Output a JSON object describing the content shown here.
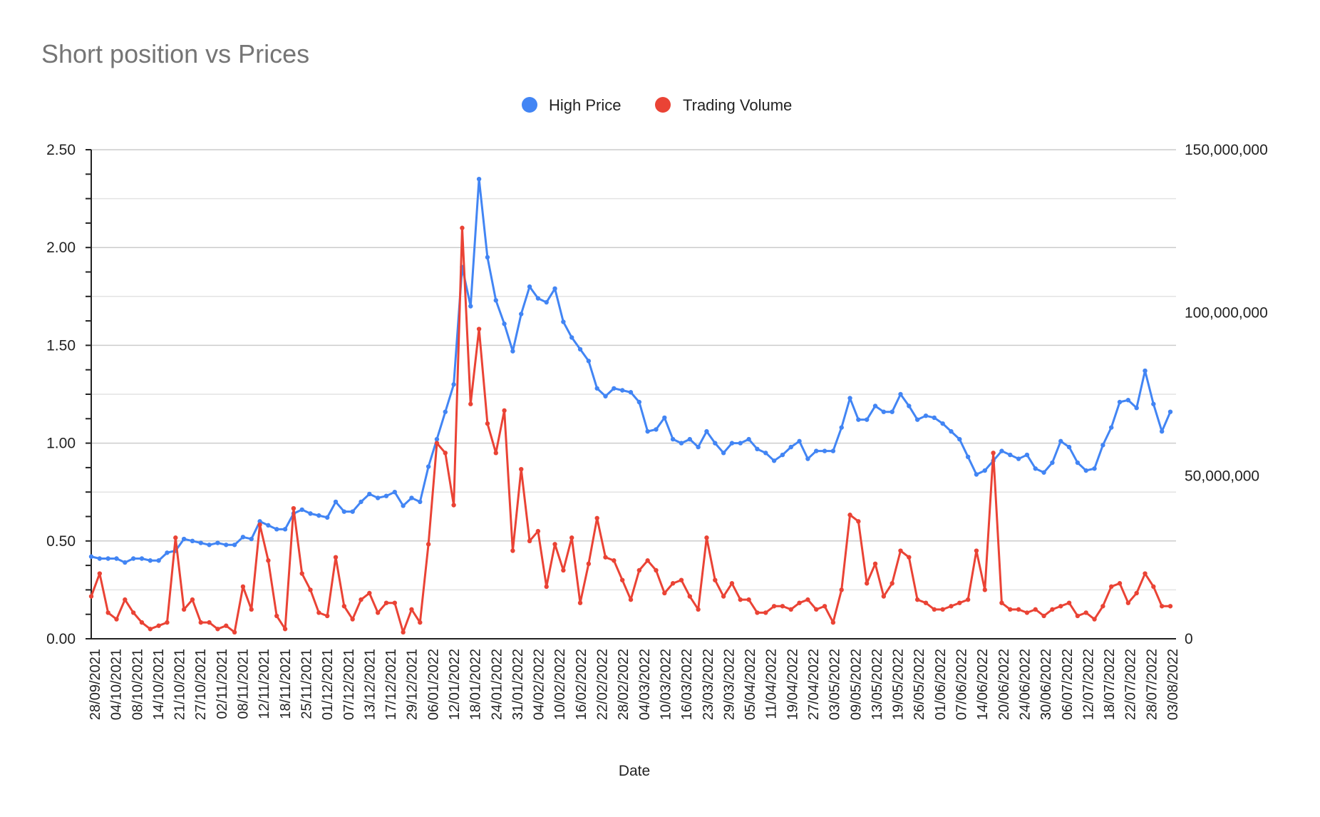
{
  "chart_data": {
    "type": "line",
    "title": "Short position vs Prices",
    "xlabel": "Date",
    "ylabel_left": "",
    "ylabel_right": "",
    "legend_position": "top",
    "grid": true,
    "x_tick_labels": [
      "28/09/2021",
      "04/10/2021",
      "08/10/2021",
      "14/10/2021",
      "21/10/2021",
      "27/10/2021",
      "02/11/2021",
      "08/11/2021",
      "12/11/2021",
      "18/11/2021",
      "25/11/2021",
      "01/12/2021",
      "07/12/2021",
      "13/12/2021",
      "17/12/2021",
      "29/12/2021",
      "06/01/2022",
      "12/01/2022",
      "18/01/2022",
      "24/01/2022",
      "31/01/2022",
      "04/02/2022",
      "10/02/2022",
      "16/02/2022",
      "22/02/2022",
      "28/02/2022",
      "04/03/2022",
      "10/03/2022",
      "16/03/2022",
      "23/03/2022",
      "29/03/2022",
      "05/04/2022",
      "11/04/2022",
      "19/04/2022",
      "27/04/2022",
      "03/05/2022",
      "09/05/2022",
      "13/05/2022",
      "19/05/2022",
      "26/05/2022",
      "01/06/2022",
      "07/06/2022",
      "14/06/2022",
      "20/06/2022",
      "24/06/2022",
      "30/06/2022",
      "06/07/2022",
      "12/07/2022",
      "18/07/2022",
      "22/07/2022",
      "28/07/2022",
      "03/08/2022"
    ],
    "y_left": {
      "range": [
        0,
        2.5
      ],
      "ticks": [
        "0.00",
        "0.50",
        "1.00",
        "1.50",
        "2.00",
        "2.50"
      ]
    },
    "y_right": {
      "range": [
        0,
        150000000
      ],
      "ticks": [
        "0",
        "50,000,000",
        "100,000,000",
        "150,000,000"
      ]
    },
    "series": [
      {
        "name": "High Price",
        "axis": "left",
        "color": "#4285f4",
        "values": [
          0.42,
          0.41,
          0.41,
          0.41,
          0.39,
          0.41,
          0.41,
          0.4,
          0.4,
          0.44,
          0.45,
          0.51,
          0.5,
          0.49,
          0.48,
          0.49,
          0.48,
          0.48,
          0.52,
          0.51,
          0.6,
          0.58,
          0.56,
          0.56,
          0.64,
          0.66,
          0.64,
          0.63,
          0.62,
          0.7,
          0.65,
          0.65,
          0.7,
          0.74,
          0.72,
          0.73,
          0.75,
          0.68,
          0.72,
          0.7,
          0.88,
          1.02,
          1.16,
          1.3,
          1.9,
          1.7,
          2.35,
          1.95,
          1.73,
          1.61,
          1.47,
          1.66,
          1.8,
          1.74,
          1.72,
          1.79,
          1.62,
          1.54,
          1.48,
          1.42,
          1.28,
          1.24,
          1.28,
          1.27,
          1.26,
          1.21,
          1.06,
          1.07,
          1.13,
          1.02,
          1.0,
          1.02,
          0.98,
          1.06,
          1.0,
          0.95,
          1.0,
          1.0,
          1.02,
          0.97,
          0.95,
          0.91,
          0.94,
          0.98,
          1.01,
          0.92,
          0.96,
          0.96,
          0.96,
          1.08,
          1.23,
          1.12,
          1.12,
          1.19,
          1.16,
          1.16,
          1.25,
          1.19,
          1.12,
          1.14,
          1.13,
          1.1,
          1.06,
          1.02,
          0.93,
          0.84,
          0.86,
          0.91,
          0.96,
          0.94,
          0.92,
          0.94,
          0.87,
          0.85,
          0.9,
          1.01,
          0.98,
          0.9,
          0.86,
          0.87,
          0.99,
          1.08,
          1.21,
          1.22,
          1.18,
          1.37,
          1.2,
          1.06,
          1.16
        ]
      },
      {
        "name": "Trading Volume",
        "axis": "right",
        "color": "#ea4335",
        "values": [
          13000000,
          20000000,
          8000000,
          6000000,
          12000000,
          8000000,
          5000000,
          3000000,
          4000000,
          5000000,
          31000000,
          9000000,
          12000000,
          5000000,
          5000000,
          3000000,
          4000000,
          2000000,
          16000000,
          9000000,
          35000000,
          24000000,
          7000000,
          3000000,
          40000000,
          20000000,
          15000000,
          8000000,
          7000000,
          25000000,
          10000000,
          6000000,
          12000000,
          14000000,
          8000000,
          11000000,
          11000000,
          2000000,
          9000000,
          5000000,
          29000000,
          60000000,
          57000000,
          41000000,
          126000000,
          72000000,
          95000000,
          66000000,
          57000000,
          70000000,
          27000000,
          52000000,
          30000000,
          33000000,
          16000000,
          29000000,
          21000000,
          31000000,
          11000000,
          23000000,
          37000000,
          25000000,
          24000000,
          18000000,
          12000000,
          21000000,
          24000000,
          21000000,
          14000000,
          17000000,
          18000000,
          13000000,
          9000000,
          31000000,
          18000000,
          13000000,
          17000000,
          12000000,
          12000000,
          8000000,
          8000000,
          10000000,
          10000000,
          9000000,
          11000000,
          12000000,
          9000000,
          10000000,
          5000000,
          15000000,
          38000000,
          36000000,
          17000000,
          23000000,
          13000000,
          17000000,
          27000000,
          25000000,
          12000000,
          11000000,
          9000000,
          9000000,
          10000000,
          11000000,
          12000000,
          27000000,
          15000000,
          57000000,
          11000000,
          9000000,
          9000000,
          8000000,
          9000000,
          7000000,
          9000000,
          10000000,
          11000000,
          7000000,
          8000000,
          6000000,
          10000000,
          16000000,
          17000000,
          11000000,
          14000000,
          20000000,
          16000000,
          10000000,
          10000000
        ]
      }
    ]
  }
}
